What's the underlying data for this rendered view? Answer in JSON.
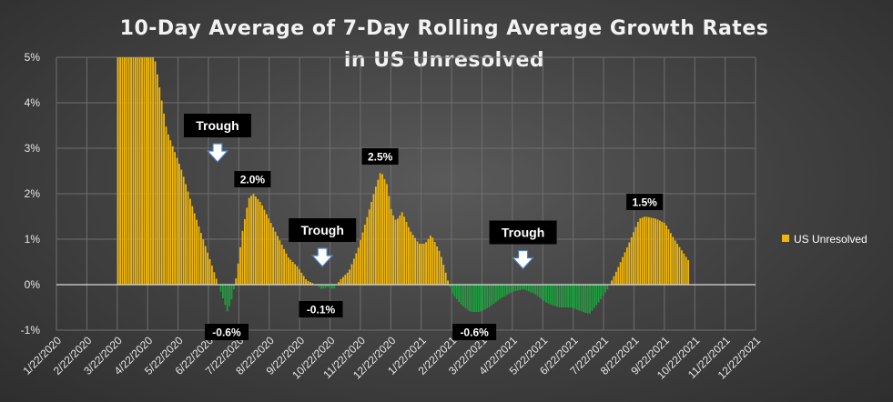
{
  "chart_data": {
    "type": "bar",
    "title_lines": [
      "10-Day Average of 7-Day Rolling Average Growth Rates",
      "in US Unresolved"
    ],
    "ylim": [
      -1,
      5
    ],
    "yticks": [
      "-1%",
      "0%",
      "1%",
      "2%",
      "3%",
      "4%",
      "5%"
    ],
    "xticks": [
      "1/22/2020",
      "2/22/2020",
      "3/22/2020",
      "4/22/2020",
      "5/22/2020",
      "6/22/2020",
      "7/22/2020",
      "8/22/2020",
      "9/22/2020",
      "10/22/2020",
      "11/22/2020",
      "12/22/2020",
      "1/22/2021",
      "2/22/2021",
      "3/22/2021",
      "4/22/2021",
      "5/22/2021",
      "6/22/2021",
      "7/22/2021",
      "8/22/2021",
      "9/22/2021",
      "10/22/2021",
      "11/22/2021",
      "12/22/2021"
    ],
    "series": [
      {
        "name": "US Unresolved",
        "color_positive": "#f2b705",
        "color_negative": "#1e9e3e",
        "keypoints": [
          [
            2.0,
            5.0
          ],
          [
            3.2,
            5.0
          ],
          [
            3.6,
            3.4
          ],
          [
            4.1,
            2.5
          ],
          [
            4.5,
            1.6
          ],
          [
            4.8,
            1.0
          ],
          [
            5.0,
            0.6
          ],
          [
            5.25,
            0.1
          ],
          [
            5.45,
            -0.3
          ],
          [
            5.6,
            -0.6
          ],
          [
            5.75,
            -0.3
          ],
          [
            5.9,
            0.2
          ],
          [
            6.1,
            1.2
          ],
          [
            6.3,
            1.9
          ],
          [
            6.45,
            2.0
          ],
          [
            6.7,
            1.8
          ],
          [
            7.0,
            1.4
          ],
          [
            7.3,
            1.0
          ],
          [
            7.6,
            0.6
          ],
          [
            7.9,
            0.4
          ],
          [
            8.2,
            0.1
          ],
          [
            8.5,
            0.0
          ],
          [
            8.7,
            -0.1
          ],
          [
            8.9,
            -0.05
          ],
          [
            9.1,
            -0.1
          ],
          [
            9.3,
            0.1
          ],
          [
            9.6,
            0.3
          ],
          [
            9.9,
            0.8
          ],
          [
            10.2,
            1.5
          ],
          [
            10.5,
            2.2
          ],
          [
            10.65,
            2.5
          ],
          [
            10.85,
            2.2
          ],
          [
            11.0,
            1.6
          ],
          [
            11.15,
            1.4
          ],
          [
            11.35,
            1.6
          ],
          [
            11.6,
            1.2
          ],
          [
            11.9,
            0.9
          ],
          [
            12.1,
            0.9
          ],
          [
            12.3,
            1.1
          ],
          [
            12.6,
            0.7
          ],
          [
            12.85,
            0.1
          ],
          [
            13.0,
            -0.2
          ],
          [
            13.3,
            -0.45
          ],
          [
            13.6,
            -0.6
          ],
          [
            13.9,
            -0.6
          ],
          [
            14.2,
            -0.5
          ],
          [
            14.6,
            -0.3
          ],
          [
            15.0,
            -0.15
          ],
          [
            15.35,
            -0.1
          ],
          [
            15.7,
            -0.2
          ],
          [
            16.1,
            -0.4
          ],
          [
            16.5,
            -0.5
          ],
          [
            16.9,
            -0.5
          ],
          [
            17.3,
            -0.6
          ],
          [
            17.5,
            -0.65
          ],
          [
            17.8,
            -0.4
          ],
          [
            18.1,
            -0.1
          ],
          [
            18.4,
            0.3
          ],
          [
            18.8,
            0.9
          ],
          [
            19.15,
            1.45
          ],
          [
            19.35,
            1.5
          ],
          [
            19.7,
            1.45
          ],
          [
            20.0,
            1.35
          ],
          [
            20.3,
            1.0
          ],
          [
            20.6,
            0.7
          ],
          [
            20.8,
            0.5
          ]
        ]
      }
    ],
    "legend": {
      "label": "US Unresolved",
      "placement": "right"
    },
    "data_labels": [
      {
        "text": "2.0%",
        "x": 6.45,
        "y": 2.0,
        "pos": "above"
      },
      {
        "text": "-0.1%",
        "x": 8.7,
        "y": -0.1,
        "pos": "below"
      },
      {
        "text": "-0.6%",
        "x": 5.6,
        "y": -0.6,
        "pos": "below"
      },
      {
        "text": "2.5%",
        "x": 10.65,
        "y": 2.5,
        "pos": "above"
      },
      {
        "text": "-0.6%",
        "x": 13.75,
        "y": -0.6,
        "pos": "below"
      },
      {
        "text": "1.5%",
        "x": 19.35,
        "y": 1.5,
        "pos": "above"
      }
    ],
    "annotations": [
      {
        "text": "Trough",
        "x": 5.3,
        "y": 3.5
      },
      {
        "text": "Trough",
        "x": 8.75,
        "y": 1.2
      },
      {
        "text": "Trough",
        "x": 15.35,
        "y": 1.15
      }
    ],
    "grid": true
  }
}
